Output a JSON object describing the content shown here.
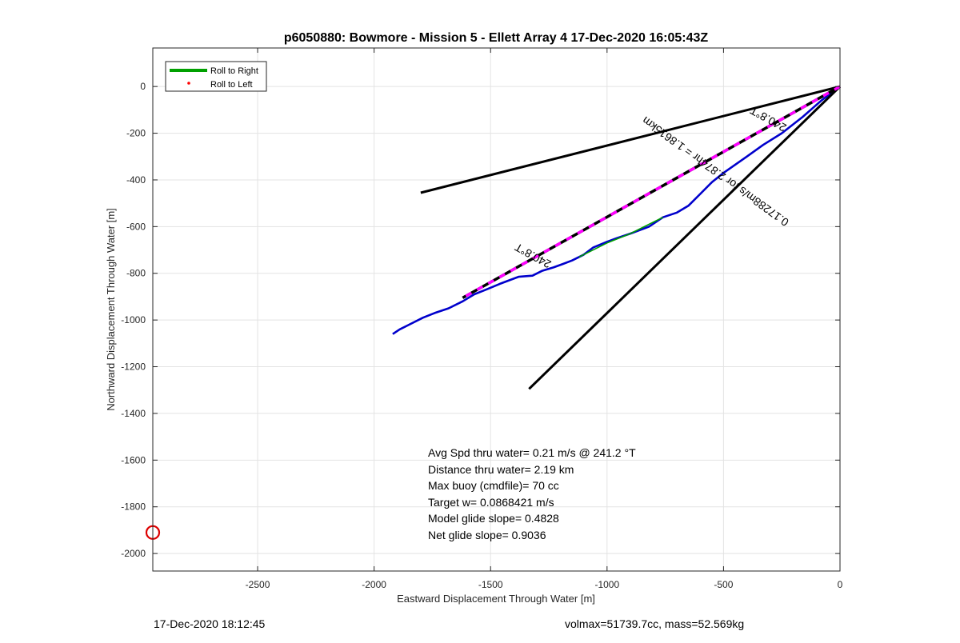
{
  "chart_data": {
    "type": "line",
    "title": "p6050880: Bowmore - Mission 5 - Ellett Array 4 17-Dec-2020 16:05:43Z",
    "xlabel": "Eastward Displacement Through Water [m]",
    "ylabel": "Northward Displacement Through Water [m]",
    "xlim": [
      -2950,
      0
    ],
    "ylim": [
      -2075,
      165
    ],
    "xticks": [
      -2500,
      -2000,
      -1500,
      -1000,
      -500,
      0
    ],
    "yticks": [
      0,
      -200,
      -400,
      -600,
      -800,
      -1000,
      -1200,
      -1400,
      -1600,
      -1800,
      -2000
    ],
    "grid": true,
    "legend_position": "top-left",
    "legend": [
      {
        "label": "Roll to Right",
        "color": "#00a000",
        "style": "line"
      },
      {
        "label": "Roll to Left",
        "color": "#ff0000",
        "style": "point"
      }
    ],
    "series": [
      {
        "role": "track",
        "color": "#0000cc",
        "x": [
          0,
          -80,
          -160,
          -250,
          -330,
          -400,
          -500,
          -550,
          -600,
          -650,
          -700,
          -760,
          -820,
          -900,
          -960,
          -1000,
          -1060,
          -1100,
          -1150,
          -1190,
          -1230,
          -1280,
          -1320,
          -1380,
          -1420,
          -1460,
          -1520,
          -1570,
          -1620,
          -1680,
          -1740,
          -1790,
          -1850,
          -1890,
          -1920
        ],
        "y": [
          0,
          -60,
          -130,
          -200,
          -250,
          -300,
          -370,
          -410,
          -460,
          -510,
          -540,
          -560,
          -600,
          -630,
          -650,
          -665,
          -690,
          -720,
          -745,
          -760,
          -775,
          -790,
          -810,
          -815,
          -830,
          -845,
          -870,
          -890,
          -920,
          -950,
          -970,
          -990,
          -1020,
          -1040,
          -1060
        ]
      },
      {
        "role": "roll-right",
        "color": "#00a000",
        "x": [
          -760,
          -900,
          -1000,
          -1120
        ],
        "y": [
          -560,
          -630,
          -670,
          -730
        ]
      },
      {
        "role": "envelope-upper",
        "color": "#000000",
        "x": [
          0,
          -1800
        ],
        "y": [
          0,
          -455
        ]
      },
      {
        "role": "envelope-lower",
        "color": "#000000",
        "x": [
          0,
          -1335
        ],
        "y": [
          0,
          -1295
        ]
      },
      {
        "role": "heading",
        "color": "#000000",
        "dash_color": "#ff00ff",
        "x": [
          0,
          -1620
        ],
        "y": [
          0,
          -905
        ]
      }
    ],
    "markers": [
      {
        "role": "current-circle",
        "color": "#dd0000",
        "x": -2950,
        "y": -1910
      }
    ],
    "line_labels": [
      {
        "text": "240.8°T",
        "x": -1310,
        "y": -710,
        "angle": 209
      },
      {
        "text": "240.8°T",
        "x": -300,
        "y": -125,
        "angle": 209
      },
      {
        "text": "0.17288m/s for 2.874hr = 1.8615km",
        "x": -525,
        "y": -350,
        "angle": 216
      }
    ],
    "annotations": [
      "Avg Spd thru water=  0.21 m/s @ 241.2 °T",
      "Distance thru water=  2.19 km",
      "Max buoy (cmdfile)= 70 cc",
      "Target w= 0.0868421 m/s",
      "Model glide slope= 0.4828",
      "Net glide slope= 0.9036"
    ]
  },
  "footer": {
    "timestamp": "17-Dec-2020 18:12:45",
    "stats": "volmax=51739.7cc, mass=52.569kg"
  }
}
